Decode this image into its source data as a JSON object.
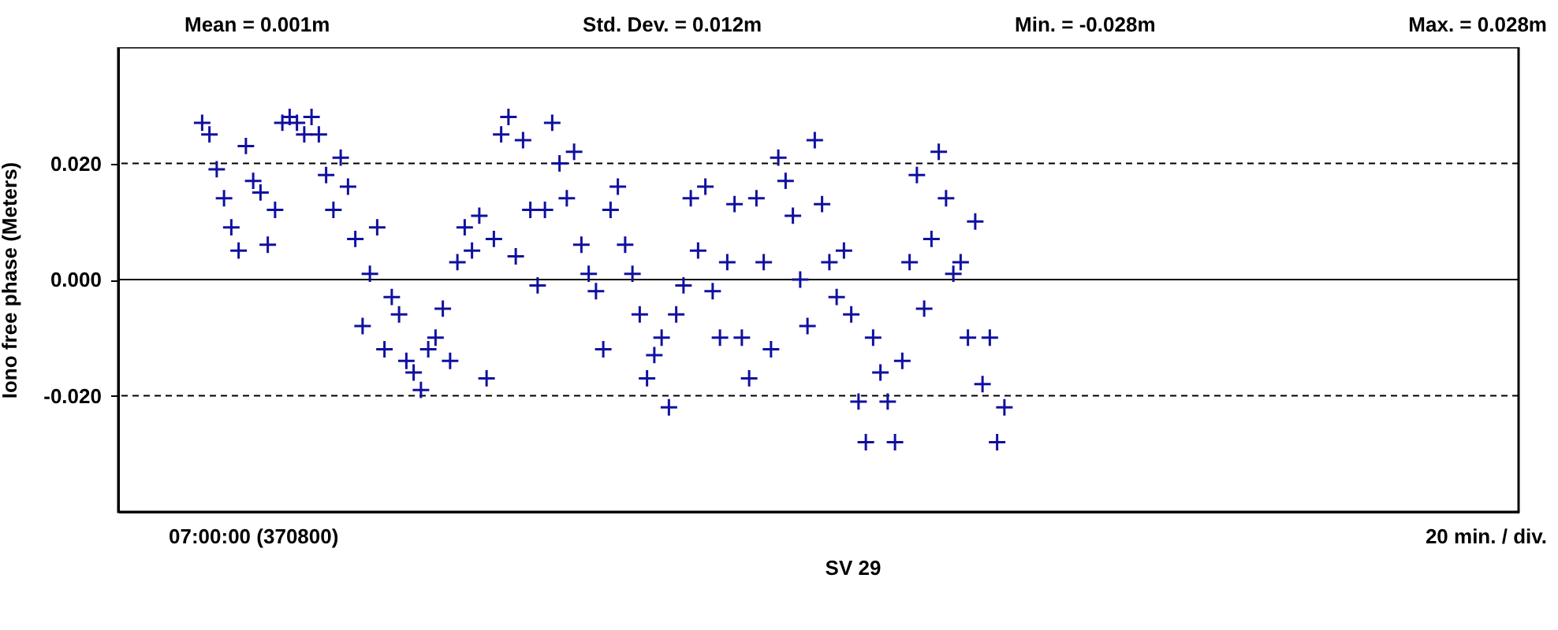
{
  "chart_data": {
    "type": "scatter",
    "xlabel": "SV 29",
    "ylabel": "Iono free phase (Meters)",
    "annotations": [
      "Mean = 0.001m",
      "Std. Dev. = 0.012m",
      "Min. = -0.028m",
      "Max. = 0.028m",
      "07:00:00 (370800)",
      "20 min. / div."
    ],
    "categories": [
      null,
      null,
      null,
      null,
      null,
      null,
      null,
      null,
      null,
      null,
      null,
      null,
      null,
      null,
      null,
      null,
      null,
      null,
      null,
      null,
      null,
      null,
      null,
      null,
      null,
      null,
      null,
      null,
      null,
      null,
      null,
      null,
      null,
      null,
      null,
      null,
      null,
      null,
      null,
      null,
      null,
      null,
      null,
      null,
      null,
      null,
      null,
      null,
      null,
      null,
      null,
      null,
      null,
      null,
      null,
      null,
      null,
      null,
      null,
      null,
      null,
      null,
      null,
      null,
      null,
      null,
      null,
      null,
      null,
      null,
      null,
      null,
      null,
      null,
      null,
      null,
      null,
      null,
      null,
      null,
      null,
      null,
      null,
      null,
      null,
      null,
      null,
      null,
      null,
      null,
      null,
      null,
      null,
      null,
      null,
      null,
      null,
      null,
      null,
      null,
      null,
      null,
      null,
      null,
      null,
      null,
      null,
      null,
      null,
      null,
      null,
      null,
      null,
      null,
      null,
      null,
      null,
      null,
      null,
      null,
      null,
      null,
      null,
      null,
      null,
      null,
      null,
      null,
      null,
      null,
      null,
      null,
      null,
      null,
      null,
      null,
      null,
      null,
      null,
      null,
      null,
      null,
      null,
      null,
      null,
      null,
      null,
      null,
      null,
      null,
      null,
      null,
      null,
      null,
      null,
      null,
      null,
      null,
      null,
      null,
      null,
      null,
      null,
      null,
      null,
      null,
      null,
      null,
      null,
      null,
      null,
      null,
      null,
      null,
      null,
      null,
      null,
      null,
      null,
      null,
      null,
      null,
      null,
      null,
      null,
      null,
      null,
      null,
      null,
      null,
      null,
      null
    ],
    "ylim": [
      -0.04,
      0.04
    ],
    "yticks": [
      {
        "value": -0.02,
        "label": "-0.020"
      },
      {
        "value": 0,
        "label": "0.000"
      },
      {
        "value": 0.02,
        "label": "0.020"
      }
    ],
    "grid": false,
    "marker": "cross",
    "ref_lines": [
      {
        "axis": "y",
        "value": 0.02,
        "label": null,
        "color": "#000000",
        "line_style": "dashed"
      },
      {
        "axis": "y",
        "value": 0,
        "label": null,
        "color": "#000000",
        "line_style": "solid"
      },
      {
        "axis": "y",
        "value": -0.02,
        "label": null,
        "color": "#000000",
        "line_style": "dashed"
      }
    ],
    "series": [
      {
        "color": "#1010a0",
        "values": [
          null,
          null,
          null,
          null,
          null,
          null,
          null,
          null,
          null,
          null,
          null,
          0.027,
          0.025,
          0.019,
          0.014,
          0.009,
          0.005,
          0.023,
          0.017,
          0.015,
          0.006,
          0.012,
          0.027,
          0.028,
          0.027,
          0.025,
          0.028,
          0.025,
          0.018,
          0.012,
          0.021,
          0.016,
          0.007,
          -0.008,
          0.001,
          0.009,
          -0.012,
          -0.003,
          -0.006,
          -0.014,
          -0.016,
          -0.019,
          -0.012,
          -0.01,
          -0.005,
          -0.014,
          0.003,
          0.009,
          0.005,
          0.011,
          -0.017,
          0.007,
          0.025,
          0.028,
          0.004,
          0.024,
          0.012,
          -0.001,
          0.012,
          0.027,
          0.02,
          0.014,
          0.022,
          0.006,
          0.001,
          -0.002,
          -0.012,
          0.012,
          0.016,
          0.006,
          0.001,
          -0.006,
          -0.017,
          -0.013,
          -0.01,
          -0.022,
          -0.006,
          -0.001,
          0.014,
          0.005,
          0.016,
          -0.002,
          -0.01,
          0.003,
          0.013,
          -0.01,
          -0.017,
          0.014,
          0.003,
          -0.012,
          0.021,
          0.017,
          0.011,
          0.0,
          -0.008,
          0.024,
          0.013,
          0.003,
          -0.003,
          0.005,
          -0.006,
          -0.021,
          -0.028,
          -0.01,
          -0.016,
          -0.021,
          -0.028,
          -0.014,
          0.003,
          0.018,
          -0.005,
          0.007,
          0.022,
          0.014,
          0.001,
          0.003,
          -0.01,
          0.01,
          -0.018,
          -0.01,
          -0.028,
          -0.022,
          null,
          null,
          null,
          null,
          null,
          null,
          null,
          null,
          null,
          null,
          null,
          null,
          null,
          null,
          null,
          null,
          null,
          null,
          null,
          null,
          null,
          null,
          null,
          null,
          null,
          null,
          null,
          null,
          null,
          null,
          null,
          null,
          null,
          null,
          null,
          null,
          null,
          null,
          null,
          null,
          null,
          null,
          null,
          null,
          null,
          null,
          null,
          null,
          null,
          null,
          null,
          null,
          null,
          null,
          null,
          null,
          null,
          null,
          null,
          null,
          null,
          null,
          null,
          null,
          null,
          null,
          null,
          null,
          null,
          null
        ]
      }
    ]
  }
}
